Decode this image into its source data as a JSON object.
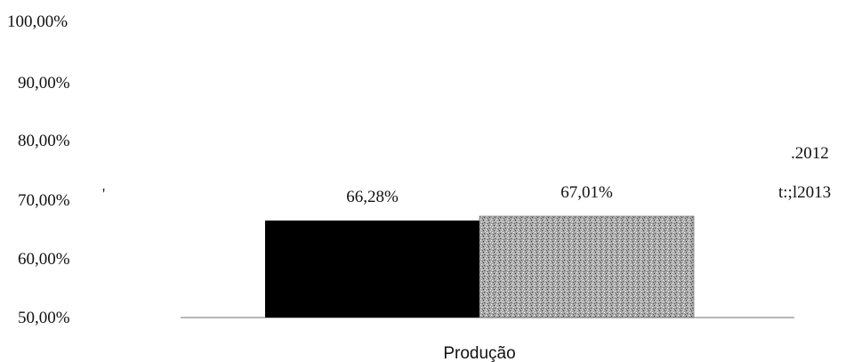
{
  "chart_data": {
    "type": "bar",
    "categories": [
      "Produção"
    ],
    "series": [
      {
        "name": ".2012",
        "values": [
          66.28
        ]
      },
      {
        "name": "t:;l2013",
        "values": [
          67.01
        ]
      }
    ],
    "data_labels": [
      "66,28%",
      "67,01%"
    ],
    "y_tick_labels": [
      "100,00%",
      "90,00%",
      "80,00%",
      "70,00%",
      "60,00%",
      "50,00%"
    ],
    "ylim": [
      50,
      100
    ],
    "grid": false,
    "legend_position": "right",
    "colors": [
      "#000000",
      "#a6a6a6"
    ],
    "stray_mark": "'"
  }
}
